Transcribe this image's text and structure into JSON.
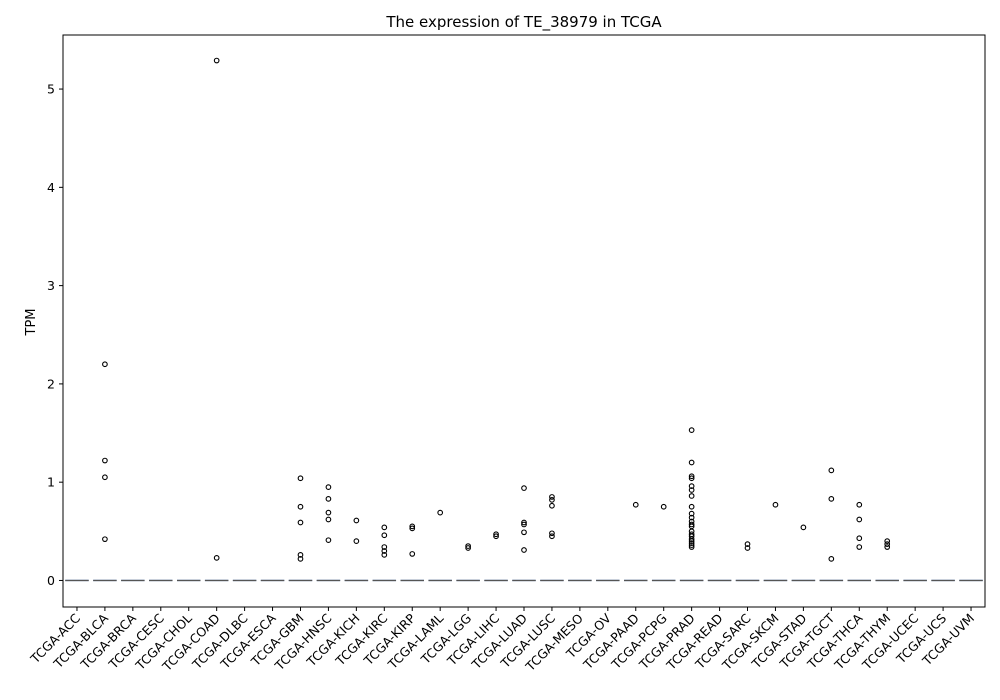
{
  "chart_data": {
    "type": "box",
    "title": "The expression of TE_38979 in TCGA",
    "xlabel": "",
    "ylabel": "TPM",
    "ylim": [
      -0.27,
      5.55
    ],
    "yticks": [
      0,
      1,
      2,
      3,
      4,
      5
    ],
    "grid": false,
    "categories": [
      "TCGA-ACC",
      "TCGA-BLCA",
      "TCGA-BRCA",
      "TCGA-CESC",
      "TCGA-CHOL",
      "TCGA-COAD",
      "TCGA-DLBC",
      "TCGA-ESCA",
      "TCGA-GBM",
      "TCGA-HNSC",
      "TCGA-KICH",
      "TCGA-KIRC",
      "TCGA-KIRP",
      "TCGA-LAML",
      "TCGA-LGG",
      "TCGA-LIHC",
      "TCGA-LUAD",
      "TCGA-LUSC",
      "TCGA-MESO",
      "TCGA-OV",
      "TCGA-PAAD",
      "TCGA-PCPG",
      "TCGA-PRAD",
      "TCGA-READ",
      "TCGA-SARC",
      "TCGA-SKCM",
      "TCGA-STAD",
      "TCGA-TGCT",
      "TCGA-THCA",
      "TCGA-THYM",
      "TCGA-UCEC",
      "TCGA-UCS",
      "TCGA-UVM"
    ],
    "medians": [
      0,
      0,
      0,
      0,
      0,
      0,
      0,
      0,
      0,
      0,
      0,
      0,
      0,
      0,
      0,
      0,
      0,
      0,
      0,
      0,
      0,
      0,
      0,
      0,
      0,
      0,
      0,
      0,
      0,
      0,
      0,
      0,
      0
    ],
    "box_color": "#4c72b0",
    "median_color": "#555555",
    "outliers": [
      [],
      [
        2.2,
        1.22,
        1.05,
        0.42
      ],
      [],
      [],
      [],
      [
        5.29,
        0.23
      ],
      [],
      [],
      [
        1.04,
        0.75,
        0.59,
        0.26,
        0.22
      ],
      [
        0.95,
        0.83,
        0.69,
        0.62,
        0.41
      ],
      [
        0.61,
        0.4
      ],
      [
        0.54,
        0.46,
        0.34,
        0.3,
        0.26
      ],
      [
        0.55,
        0.53,
        0.27
      ],
      [
        0.69
      ],
      [
        0.35,
        0.33
      ],
      [
        0.47,
        0.45
      ],
      [
        0.94,
        0.59,
        0.57,
        0.49,
        0.31
      ],
      [
        0.85,
        0.82,
        0.76,
        0.48,
        0.45
      ],
      [],
      [],
      [
        0.77
      ],
      [
        0.75
      ],
      [
        1.53,
        1.2,
        1.06,
        1.04,
        0.96,
        0.92,
        0.86,
        0.75,
        0.68,
        0.64,
        0.6,
        0.57,
        0.55,
        0.5,
        0.47,
        0.45,
        0.42,
        0.4,
        0.38,
        0.36,
        0.34
      ],
      [],
      [
        0.37,
        0.33
      ],
      [
        0.77
      ],
      [
        0.54
      ],
      [
        1.12,
        0.83,
        0.22
      ],
      [
        0.77,
        0.62,
        0.43,
        0.34
      ],
      [
        0.4,
        0.37,
        0.34
      ],
      [],
      [],
      []
    ]
  }
}
